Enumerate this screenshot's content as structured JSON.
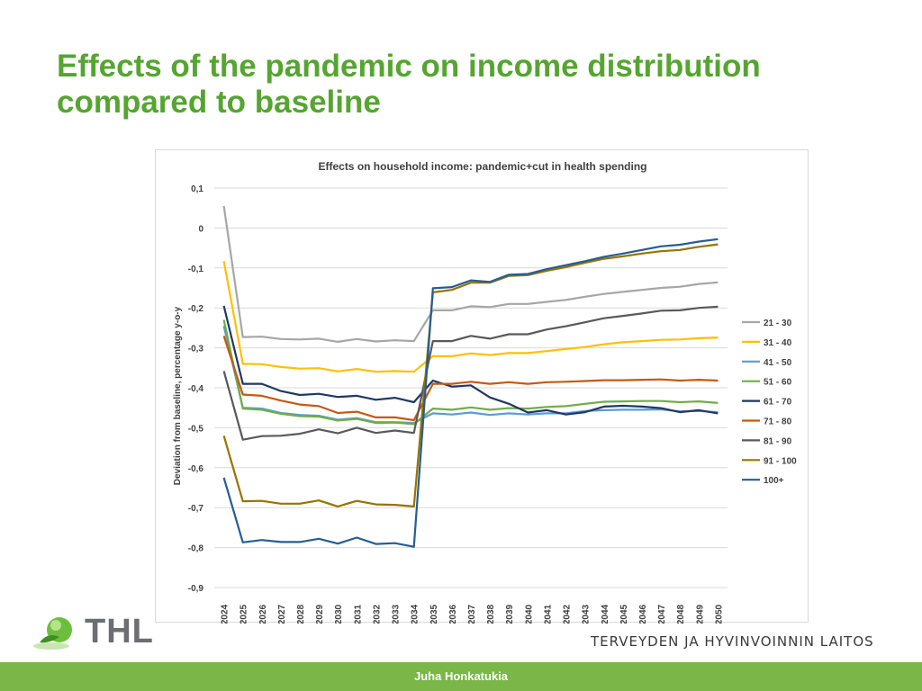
{
  "slide": {
    "title_line1": "Effects of the pandemic on income distribution",
    "title_line2": "compared to baseline"
  },
  "logo": {
    "text": "THL"
  },
  "organization": "TERVEYDEN JA HYVINVOINNIN LAITOS",
  "footer": {
    "author": "Juha Honkatukia"
  },
  "colors": {
    "title": "#55a530",
    "footer": "#7ab648"
  },
  "chart_data": {
    "type": "line",
    "title": "Effects on household income: pandemic+cut in health spending",
    "xlabel": "",
    "ylabel": "Deviation from baseline, percentage y-o-y",
    "ylim": [
      -0.9,
      0.1
    ],
    "yticks": [
      0.1,
      0,
      -0.1,
      -0.2,
      -0.3,
      -0.4,
      -0.5,
      -0.6,
      -0.7,
      -0.8,
      -0.9
    ],
    "ytick_labels": [
      "0,1",
      "0",
      "-0,1",
      "-0,2",
      "-0,3",
      "-0,4",
      "-0,5",
      "-0,6",
      "-0,7",
      "-0,8",
      "-0,9"
    ],
    "grid": true,
    "legend_position": "right",
    "categories": [
      "2024",
      "2025",
      "2026",
      "2027",
      "2028",
      "2029",
      "2030",
      "2031",
      "2032",
      "2033",
      "2034",
      "2035",
      "2036",
      "2037",
      "2038",
      "2039",
      "2040",
      "2041",
      "2042",
      "2043",
      "2044",
      "2045",
      "2046",
      "2047",
      "2048",
      "2049",
      "2050"
    ],
    "series": [
      {
        "name": "21 - 30",
        "color": "#a6a6a6",
        "values": [
          0.055,
          -0.273,
          -0.272,
          -0.278,
          -0.279,
          -0.277,
          -0.285,
          -0.278,
          -0.284,
          -0.281,
          -0.283,
          -0.206,
          -0.206,
          -0.196,
          -0.198,
          -0.19,
          -0.19,
          -0.185,
          -0.18,
          -0.172,
          -0.165,
          -0.16,
          -0.155,
          -0.15,
          -0.147,
          -0.14,
          -0.136
        ]
      },
      {
        "name": "31 - 40",
        "color": "#ffc000",
        "values": [
          -0.083,
          -0.34,
          -0.341,
          -0.348,
          -0.352,
          -0.351,
          -0.359,
          -0.353,
          -0.36,
          -0.358,
          -0.36,
          -0.321,
          -0.321,
          -0.314,
          -0.318,
          -0.313,
          -0.313,
          -0.308,
          -0.303,
          -0.298,
          -0.291,
          -0.286,
          -0.283,
          -0.28,
          -0.279,
          -0.276,
          -0.274
        ]
      },
      {
        "name": "41 - 50",
        "color": "#5b9bd5",
        "values": [
          -0.245,
          -0.45,
          -0.452,
          -0.463,
          -0.468,
          -0.47,
          -0.48,
          -0.476,
          -0.486,
          -0.486,
          -0.488,
          -0.464,
          -0.467,
          -0.462,
          -0.468,
          -0.464,
          -0.467,
          -0.464,
          -0.464,
          -0.458,
          -0.456,
          -0.455,
          -0.455,
          -0.454,
          -0.459,
          -0.458,
          -0.461
        ]
      },
      {
        "name": "51 - 60",
        "color": "#70ad47",
        "values": [
          -0.23,
          -0.452,
          -0.455,
          -0.465,
          -0.471,
          -0.472,
          -0.482,
          -0.478,
          -0.488,
          -0.487,
          -0.491,
          -0.452,
          -0.455,
          -0.449,
          -0.455,
          -0.451,
          -0.452,
          -0.448,
          -0.446,
          -0.44,
          -0.435,
          -0.434,
          -0.433,
          -0.433,
          -0.436,
          -0.434,
          -0.438
        ]
      },
      {
        "name": "61 - 70",
        "color": "#1f3864",
        "values": [
          -0.195,
          -0.39,
          -0.39,
          -0.408,
          -0.418,
          -0.415,
          -0.423,
          -0.42,
          -0.43,
          -0.425,
          -0.436,
          -0.382,
          -0.397,
          -0.394,
          -0.424,
          -0.44,
          -0.462,
          -0.456,
          -0.467,
          -0.461,
          -0.447,
          -0.445,
          -0.447,
          -0.451,
          -0.461,
          -0.456,
          -0.464
        ]
      },
      {
        "name": "71 - 80",
        "color": "#c55a11",
        "values": [
          -0.27,
          -0.417,
          -0.42,
          -0.432,
          -0.442,
          -0.446,
          -0.463,
          -0.46,
          -0.474,
          -0.474,
          -0.481,
          -0.39,
          -0.39,
          -0.385,
          -0.39,
          -0.386,
          -0.39,
          -0.386,
          -0.385,
          -0.383,
          -0.381,
          -0.381,
          -0.38,
          -0.379,
          -0.382,
          -0.38,
          -0.382
        ]
      },
      {
        "name": "81 - 90",
        "color": "#595959",
        "values": [
          -0.358,
          -0.53,
          -0.521,
          -0.52,
          -0.515,
          -0.504,
          -0.514,
          -0.5,
          -0.513,
          -0.507,
          -0.513,
          -0.283,
          -0.283,
          -0.27,
          -0.277,
          -0.266,
          -0.266,
          -0.254,
          -0.246,
          -0.236,
          -0.226,
          -0.22,
          -0.214,
          -0.207,
          -0.206,
          -0.2,
          -0.197
        ]
      },
      {
        "name": "91 - 100",
        "color": "#997300",
        "values": [
          -0.52,
          -0.684,
          -0.683,
          -0.69,
          -0.69,
          -0.682,
          -0.697,
          -0.683,
          -0.692,
          -0.693,
          -0.697,
          -0.161,
          -0.155,
          -0.137,
          -0.137,
          -0.12,
          -0.118,
          -0.107,
          -0.098,
          -0.087,
          -0.077,
          -0.071,
          -0.064,
          -0.058,
          -0.055,
          -0.047,
          -0.041
        ]
      },
      {
        "name": "100+",
        "color": "#255e91",
        "values": [
          -0.625,
          -0.787,
          -0.781,
          -0.786,
          -0.786,
          -0.778,
          -0.79,
          -0.775,
          -0.791,
          -0.789,
          -0.798,
          -0.151,
          -0.148,
          -0.131,
          -0.135,
          -0.117,
          -0.115,
          -0.103,
          -0.093,
          -0.083,
          -0.072,
          -0.064,
          -0.055,
          -0.046,
          -0.042,
          -0.034,
          -0.028
        ]
      }
    ]
  }
}
